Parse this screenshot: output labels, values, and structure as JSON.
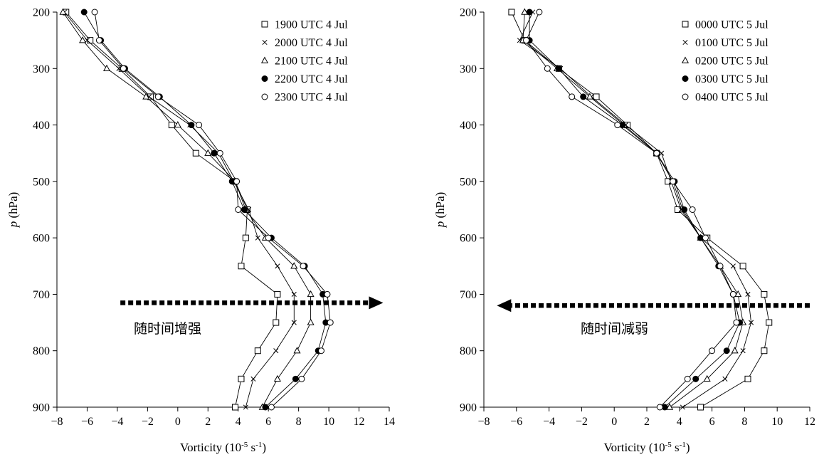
{
  "chart_data": [
    {
      "type": "line",
      "xlabel_main": "Vorticity (10",
      "xlabel_exp1": "-5",
      "xlabel_mid": " s",
      "xlabel_exp2": "-1",
      "xlabel_end": ")",
      "ylabel_var": "p",
      "ylabel_unit": " (hPa)",
      "xlim": [
        -8,
        14
      ],
      "ylim": [
        200,
        900
      ],
      "xticks": [
        -8,
        -6,
        -4,
        -2,
        0,
        2,
        4,
        6,
        8,
        10,
        12,
        14
      ],
      "xtick_labels": [
        "−8",
        "−6",
        "−4",
        "−2",
        "0",
        "2",
        "4",
        "6",
        "8",
        "10",
        "12",
        "14"
      ],
      "yticks": [
        200,
        300,
        400,
        500,
        600,
        700,
        800,
        900
      ],
      "ytick_labels": [
        "200",
        "300",
        "400",
        "500",
        "600",
        "700",
        "800",
        "900"
      ],
      "y_inverted": true,
      "legend": "top-right",
      "annotation": "随时间增强",
      "arrow_direction": "right",
      "arrow_from_x": -3.8,
      "arrow_to_x": 13.6,
      "arrow_at_p": 715,
      "levels": [
        200,
        250,
        300,
        350,
        400,
        450,
        500,
        550,
        600,
        650,
        700,
        750,
        800,
        850,
        900
      ],
      "series": [
        {
          "name": "1900 UTC 4 Jul",
          "marker": "square",
          "values": [
            -7.4,
            -5.8,
            -3.7,
            -1.8,
            -0.4,
            1.2,
            3.8,
            4.6,
            4.5,
            4.2,
            6.6,
            6.5,
            5.3,
            4.2,
            3.8
          ]
        },
        {
          "name": "2000 UTC 4 Jul",
          "marker": "x",
          "values": [
            -7.5,
            -6.0,
            -3.9,
            -1.9,
            0.8,
            2.7,
            3.7,
            4.7,
            5.3,
            6.6,
            7.7,
            7.7,
            6.5,
            5.0,
            4.5
          ]
        },
        {
          "name": "2100 UTC 4 Jul",
          "marker": "triangle",
          "values": [
            -7.6,
            -6.3,
            -4.7,
            -2.1,
            0.0,
            2.0,
            3.8,
            4.5,
            5.8,
            7.7,
            8.8,
            8.8,
            7.9,
            6.6,
            5.6
          ]
        },
        {
          "name": "2200 UTC 4 Jul",
          "marker": "circle-filled",
          "values": [
            -6.2,
            -5.1,
            -3.5,
            -1.2,
            0.9,
            2.4,
            3.6,
            4.4,
            6.2,
            8.4,
            9.6,
            9.8,
            9.3,
            7.8,
            5.8
          ]
        },
        {
          "name": "2300 UTC 4 Jul",
          "marker": "circle-open",
          "values": [
            -5.5,
            -5.2,
            -3.6,
            -1.3,
            1.4,
            2.8,
            3.9,
            4.0,
            6.0,
            8.3,
            9.9,
            10.1,
            9.5,
            8.2,
            6.2
          ]
        }
      ]
    },
    {
      "type": "line",
      "xlabel_main": "Vorticity (10",
      "xlabel_exp1": "-5",
      "xlabel_mid": " s",
      "xlabel_exp2": "-1",
      "xlabel_end": ")",
      "ylabel_var": "p",
      "ylabel_unit": " (hPa)",
      "xlim": [
        -8,
        12
      ],
      "ylim": [
        200,
        900
      ],
      "xticks": [
        -8,
        -6,
        -4,
        -2,
        0,
        2,
        4,
        6,
        8,
        10,
        12
      ],
      "xtick_labels": [
        "−8",
        "−6",
        "−4",
        "−2",
        "0",
        "2",
        "4",
        "6",
        "8",
        "10",
        "12"
      ],
      "yticks": [
        200,
        300,
        400,
        500,
        600,
        700,
        800,
        900
      ],
      "ytick_labels": [
        "200",
        "300",
        "400",
        "500",
        "600",
        "700",
        "800",
        "900"
      ],
      "y_inverted": true,
      "legend": "top-right",
      "annotation": "随时间减弱",
      "arrow_direction": "left",
      "arrow_from_x": 12.0,
      "arrow_to_x": -7.2,
      "arrow_at_p": 720,
      "levels": [
        200,
        250,
        300,
        350,
        400,
        450,
        500,
        550,
        600,
        650,
        700,
        750,
        800,
        850,
        900
      ],
      "series": [
        {
          "name": "0000 UTC 5 Jul",
          "marker": "square",
          "values": [
            -6.3,
            -5.5,
            -3.4,
            -1.1,
            0.8,
            2.6,
            3.3,
            3.9,
            5.7,
            7.9,
            9.2,
            9.5,
            9.2,
            8.2,
            5.3
          ]
        },
        {
          "name": "0100 UTC 5 Jul",
          "marker": "x",
          "values": [
            -5.0,
            -5.8,
            -3.3,
            -1.4,
            0.7,
            2.9,
            3.5,
            4.1,
            5.3,
            7.3,
            8.2,
            8.4,
            7.9,
            6.8,
            4.2
          ]
        },
        {
          "name": "0200 UTC 5 Jul",
          "marker": "triangle",
          "values": [
            -5.5,
            -5.6,
            -3.5,
            -1.5,
            0.6,
            2.6,
            3.6,
            4.2,
            5.3,
            6.5,
            7.6,
            7.9,
            7.4,
            5.7,
            3.4
          ]
        },
        {
          "name": "0300 UTC 5 Jul",
          "marker": "circle-filled",
          "values": [
            -5.2,
            -5.2,
            -3.4,
            -1.9,
            0.5,
            2.6,
            3.7,
            4.3,
            5.3,
            6.4,
            7.3,
            7.7,
            6.9,
            5.0,
            3.1
          ]
        },
        {
          "name": "0400 UTC 5 Jul",
          "marker": "circle-open",
          "values": [
            -4.6,
            -5.4,
            -4.1,
            -2.6,
            0.2,
            2.6,
            3.6,
            4.8,
            5.6,
            6.5,
            7.3,
            7.5,
            6.0,
            4.5,
            2.8
          ]
        }
      ]
    }
  ]
}
